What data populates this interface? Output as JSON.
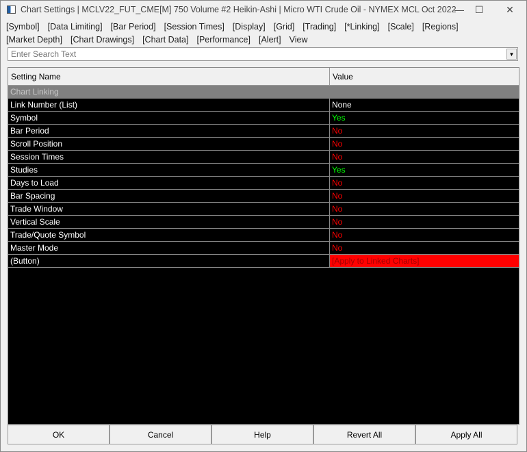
{
  "window": {
    "title": "Chart Settings | MCLV22_FUT_CME[M]  750 Volume  #2 Heikin-Ashi | Micro WTI Crude Oil - NYMEX MCL Oct 2022",
    "minimize": "—",
    "maximize": "☐",
    "close": "✕"
  },
  "menu_row1": [
    "[Symbol]",
    "[Data Limiting]",
    "[Bar Period]",
    "[Session Times]",
    "[Display]",
    "[Grid]",
    "[Trading]",
    "[*Linking]",
    "[Scale]",
    "[Regions]"
  ],
  "menu_row2": [
    "[Market Depth]",
    "[Chart Drawings]",
    "[Chart Data]",
    "[Performance]",
    "[Alert]",
    "View"
  ],
  "search": {
    "placeholder": "Enter Search Text"
  },
  "table": {
    "headers": [
      "Setting Name",
      "Value"
    ],
    "group": "Chart Linking",
    "rows": [
      {
        "name": "Link Number (List)",
        "value": "None",
        "cls": "none"
      },
      {
        "name": "Symbol",
        "value": "Yes",
        "cls": "yes"
      },
      {
        "name": "Bar Period",
        "value": "No",
        "cls": "no"
      },
      {
        "name": "Scroll Position",
        "value": "No",
        "cls": "no"
      },
      {
        "name": "Session Times",
        "value": "No",
        "cls": "no"
      },
      {
        "name": "Studies",
        "value": "Yes",
        "cls": "yes"
      },
      {
        "name": "Days to Load",
        "value": "No",
        "cls": "no"
      },
      {
        "name": "Bar Spacing",
        "value": "No",
        "cls": "no"
      },
      {
        "name": "Trade Window",
        "value": "No",
        "cls": "no"
      },
      {
        "name": "Vertical Scale",
        "value": "No",
        "cls": "no"
      },
      {
        "name": "Trade/Quote Symbol",
        "value": "No",
        "cls": "no"
      },
      {
        "name": "Master Mode",
        "value": "No",
        "cls": "no"
      },
      {
        "name": " (Button)",
        "value": "[Apply to Linked Charts]",
        "cls": "btnval"
      }
    ]
  },
  "buttons": {
    "ok": "OK",
    "cancel": "Cancel",
    "help": "Help",
    "revert": "Revert All",
    "apply": "Apply All"
  }
}
